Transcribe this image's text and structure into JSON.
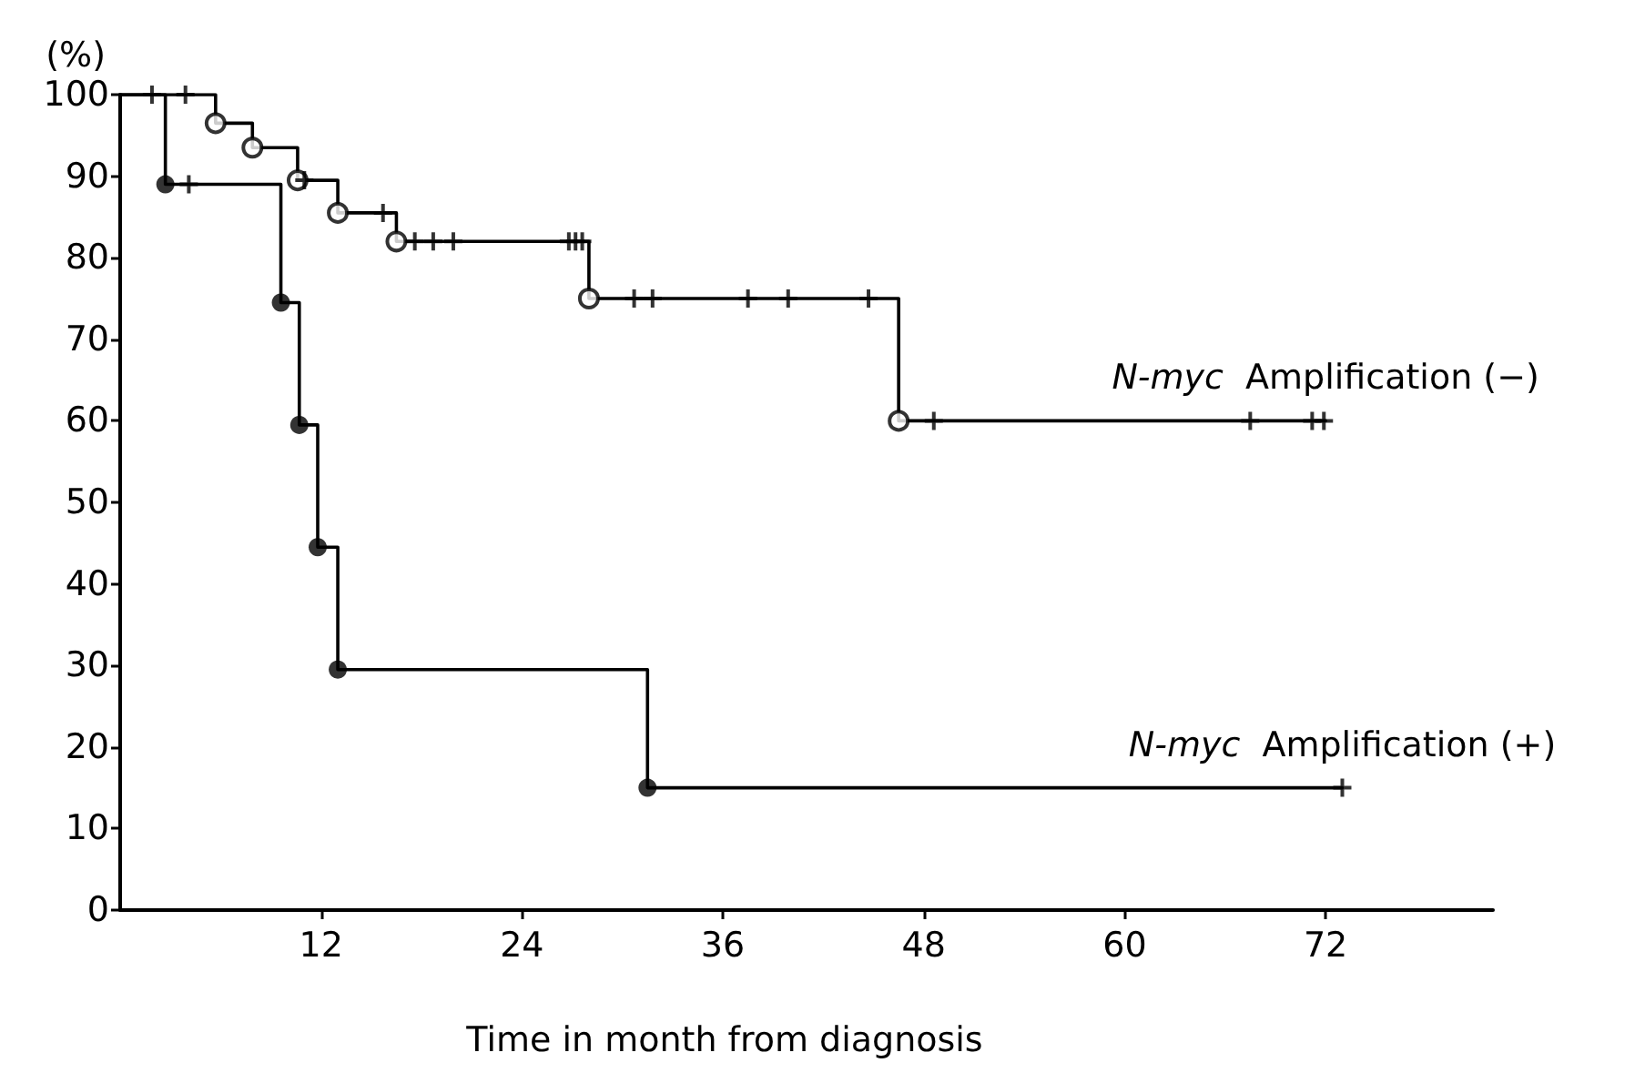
{
  "chart_data": {
    "type": "step",
    "xlabel": "Time in month from diagnosis",
    "ylabel": "(%)",
    "xlim": [
      0,
      82
    ],
    "xticks": [
      12,
      24,
      36,
      48,
      60,
      72
    ],
    "ylim": [
      0,
      100
    ],
    "yticks": [
      0,
      10,
      20,
      30,
      40,
      50,
      60,
      70,
      80,
      90,
      100
    ],
    "grid": false,
    "series": [
      {
        "name": "N-myc  Amplification (−)",
        "color": "#000000",
        "marker": "none",
        "x": [
          0,
          5.7,
          7.9,
          10.6,
          13,
          16.5,
          28,
          46.5,
          72
        ],
        "values": [
          100,
          96.5,
          93.5,
          89.5,
          85.5,
          82,
          75,
          60,
          60
        ]
      },
      {
        "name": "N-myc  Amplification (+)",
        "color": "#000000",
        "marker": "none",
        "x": [
          0,
          2.7,
          9.6,
          10.7,
          11.8,
          13,
          31.5,
          73
        ],
        "values": [
          100,
          89,
          74.5,
          59.5,
          44.5,
          29.5,
          15,
          15
        ]
      },
      {
        "type": "scatter",
        "color": "#000000",
        "marker": "open circle",
        "x": [
          5.7,
          7.9,
          10.6,
          13,
          16.5,
          28,
          46.5
        ],
        "values": [
          96.5,
          93.5,
          89.5,
          85.5,
          82,
          75,
          60
        ]
      },
      {
        "type": "scatter",
        "color": "#000000",
        "marker": "circle",
        "x": [
          2.7,
          9.6,
          10.7,
          11.8,
          13,
          31.5
        ],
        "values": [
          89,
          74.5,
          59.5,
          44.5,
          29.5,
          15
        ]
      },
      {
        "type": "scatter",
        "color": "#000000",
        "marker": "cross",
        "x": [
          1.9,
          3.9,
          11,
          15.7,
          17.6,
          18.7,
          19.9,
          26.8,
          27.2,
          27.6,
          30.7,
          31.8,
          37.5,
          39.9,
          44.7,
          48.6,
          67.5,
          71.2,
          71.9
        ],
        "values": [
          100,
          100,
          89.5,
          85.5,
          82,
          82,
          82,
          82,
          82,
          82,
          75,
          75,
          75,
          75,
          75,
          60,
          60,
          60,
          60
        ]
      },
      {
        "type": "scatter",
        "color": "#000000",
        "marker": "cross",
        "x": [
          4.1,
          73
        ],
        "values": [
          89,
          15
        ]
      }
    ]
  }
}
